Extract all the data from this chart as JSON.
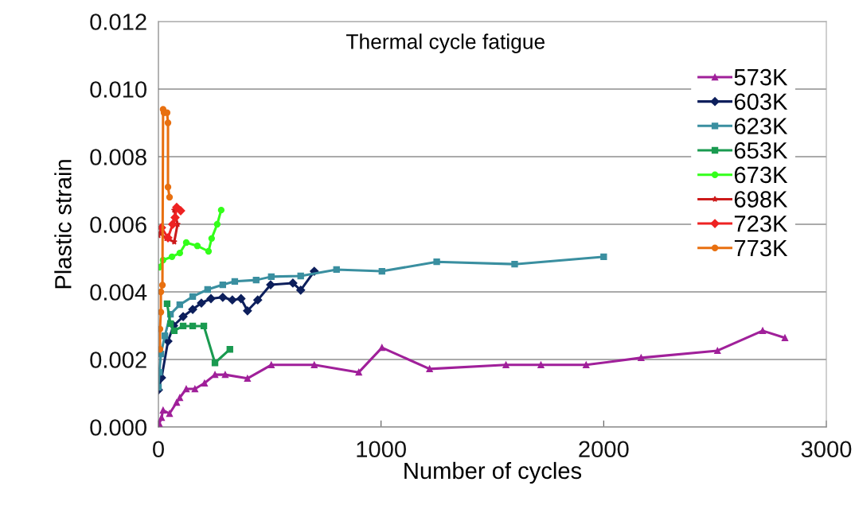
{
  "chart_data": {
    "type": "line",
    "xlabel": "Number of cycles",
    "ylabel": "Plastic strain",
    "annotations": [
      "Thermal cycle fatigue"
    ],
    "xlim": [
      0,
      3000
    ],
    "xticks": [
      0,
      1000,
      2000,
      3000
    ],
    "ylim": [
      0,
      0.012
    ],
    "yticks": [
      {
        "value": 0,
        "label": "0.000"
      },
      {
        "value": 0.002,
        "label": "0.002"
      },
      {
        "value": 0.004,
        "label": "0.004"
      },
      {
        "value": 0.006,
        "label": "0.006"
      },
      {
        "value": 0.008,
        "label": "0.008"
      },
      {
        "value": 0.01,
        "label": "0.010"
      },
      {
        "value": 0.012,
        "label": "0.012"
      }
    ],
    "grid": "y",
    "legend": "top right",
    "series": [
      {
        "name": "573K",
        "color": "#a0209a",
        "marker": "triangle",
        "x": [
          4,
          14,
          21,
          50,
          82,
          96,
          125,
          164,
          207,
          254,
          300,
          400,
          507,
          700,
          900,
          1004,
          1218,
          1561,
          1718,
          1921,
          2168,
          2511,
          2714,
          2814
        ],
        "values": [
          0.0001,
          0.00028,
          0.0005,
          0.0004,
          0.00073,
          0.00087,
          0.00113,
          0.00113,
          0.0013,
          0.00155,
          0.00155,
          0.00144,
          0.00184,
          0.00184,
          0.00162,
          0.00235,
          0.00172,
          0.00184,
          0.00184,
          0.00184,
          0.00205,
          0.00226,
          0.00285,
          0.00264
        ]
      },
      {
        "name": "603K",
        "color": "#0d1f5c",
        "marker": "diamond",
        "x": [
          0,
          14,
          43,
          68,
          111,
          154,
          193,
          236,
          289,
          332,
          371,
          400,
          446,
          504,
          604,
          639,
          700
        ],
        "values": [
          0.0011,
          0.00146,
          0.00254,
          0.003,
          0.00327,
          0.00348,
          0.00367,
          0.0038,
          0.00384,
          0.00376,
          0.0038,
          0.00344,
          0.00376,
          0.00421,
          0.00426,
          0.00405,
          0.00461
        ]
      },
      {
        "name": "623K",
        "color": "#3a8fa0",
        "marker": "square",
        "x": [
          0,
          4,
          11,
          29,
          54,
          96,
          154,
          221,
          289,
          343,
          439,
          507,
          639,
          800,
          1004,
          1250,
          1600,
          2000
        ],
        "values": [
          0.00118,
          0.00162,
          0.00216,
          0.0027,
          0.00334,
          0.00362,
          0.00386,
          0.00407,
          0.00421,
          0.00431,
          0.00435,
          0.00445,
          0.00447,
          0.00466,
          0.00461,
          0.00489,
          0.00482,
          0.00504
        ]
      },
      {
        "name": "653K",
        "color": "#1a9a50",
        "marker": "square",
        "x": [
          39,
          54,
          71,
          111,
          154,
          204,
          254,
          321
        ],
        "values": [
          0.00365,
          0.00306,
          0.00285,
          0.00299,
          0.00299,
          0.00299,
          0.0019,
          0.0023
        ]
      },
      {
        "name": "673K",
        "color": "#33ff1a",
        "marker": "circle",
        "x": [
          4,
          21,
          61,
          96,
          125,
          175,
          225,
          239,
          264,
          282
        ],
        "values": [
          0.00473,
          0.00494,
          0.00504,
          0.00515,
          0.00546,
          0.00536,
          0.0052,
          0.00558,
          0.006,
          0.00642
        ]
      },
      {
        "name": "698K",
        "color": "#cc1a1a",
        "marker": "star",
        "x": [
          0,
          7,
          36,
          71,
          86,
          71
        ],
        "values": [
          0.00567,
          0.00574,
          0.00558,
          0.00548,
          0.006,
          0.00642
        ]
      },
      {
        "name": "723K",
        "color": "#ee2222",
        "marker": "diamond",
        "x": [
          14,
          43,
          64,
          75,
          82,
          100
        ],
        "values": [
          0.0059,
          0.0056,
          0.006,
          0.0062,
          0.0065,
          0.0064
        ]
      },
      {
        "name": "773K",
        "color": "#e87010",
        "marker": "circle",
        "x": [
          7,
          7,
          11,
          11,
          18,
          21,
          25,
          39,
          43,
          43,
          50
        ],
        "values": [
          0.0023,
          0.0029,
          0.0034,
          0.004,
          0.0042,
          0.0094,
          0.0093,
          0.0093,
          0.009,
          0.0071,
          0.0068
        ]
      }
    ]
  }
}
